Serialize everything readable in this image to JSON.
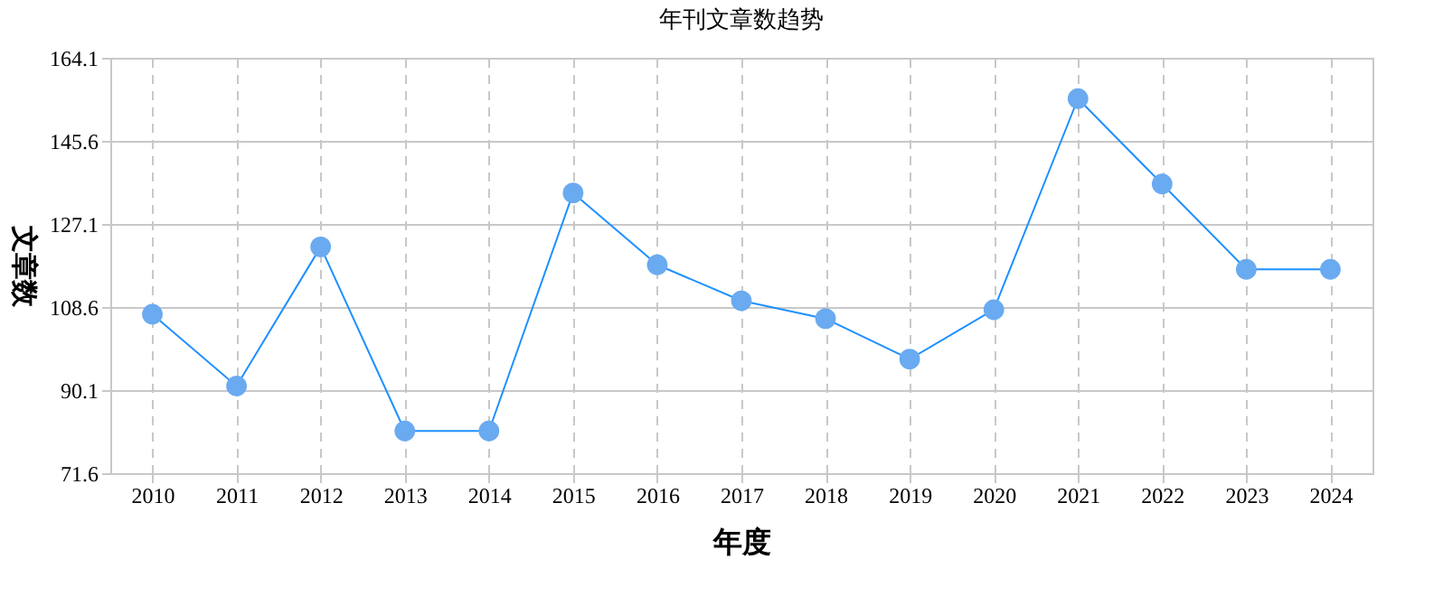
{
  "chart_data": {
    "type": "line",
    "title": "年刊文章数趋势",
    "xlabel": "年度",
    "ylabel": "文章数",
    "categories": [
      "2010",
      "2011",
      "2012",
      "2013",
      "2014",
      "2015",
      "2016",
      "2017",
      "2018",
      "2019",
      "2020",
      "2021",
      "2022",
      "2023",
      "2024"
    ],
    "series": [
      {
        "color": "#1e90ff",
        "values": [
          107,
          91,
          122,
          81,
          81,
          134,
          118,
          110,
          106,
          97,
          108,
          155,
          136,
          117,
          117
        ]
      }
    ],
    "ylim": [
      71.6,
      164.1
    ],
    "yticks": [
      71.6,
      90.1,
      108.6,
      127.1,
      145.6,
      164.1
    ],
    "grid": true,
    "marker": "circle",
    "line_style": "solid",
    "legend": false
  }
}
